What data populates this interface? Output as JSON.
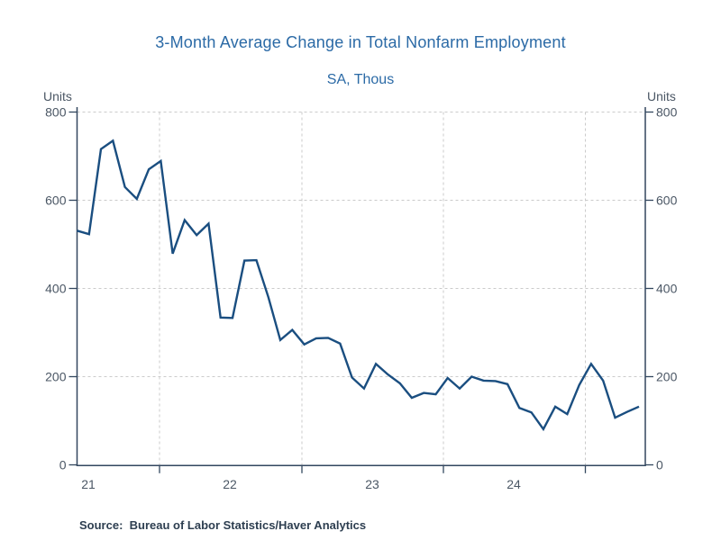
{
  "chart": {
    "title": "3-Month Average Change in Total Nonfarm Employment",
    "subtitle": "SA, Thous",
    "left_units": "Units",
    "right_units": "Units",
    "source_label": "Source:  Bureau of Labor Statistics/Haver Analytics"
  },
  "chart_data": {
    "type": "line",
    "title": "3-Month Average Change in Total Nonfarm Employment",
    "subtitle": "SA, Thous",
    "ylabel_left": "Units",
    "ylabel_right": "Units",
    "ylim": [
      0,
      800
    ],
    "y_ticks": [
      0,
      200,
      400,
      600,
      800
    ],
    "x_tick_year_labels": [
      "21",
      "22",
      "23",
      "24"
    ],
    "legend": "none",
    "grid": "dashed gray horizontal lines every 200 units and dashed vertical lines at mid-year",
    "source": "Source:  Bureau of Labor Statistics/Haver Analytics",
    "series": [
      {
        "name": "3-Month Average Change in Total Nonfarm Employment (SA, Thous)",
        "x": [
          "Dec 2020",
          "Jan 2021",
          "Feb 2021",
          "Mar 2021",
          "Apr 2021",
          "May 2021",
          "Jun 2021",
          "Jul 2021",
          "Aug 2021",
          "Sep 2021",
          "Oct 2021",
          "Nov 2021",
          "Dec 2021",
          "Jan 2022",
          "Feb 2022",
          "Mar 2022",
          "Apr 2022",
          "May 2022",
          "Jun 2022",
          "Jul 2022",
          "Aug 2022",
          "Sep 2022",
          "Oct 2022",
          "Nov 2022",
          "Dec 2022",
          "Jan 2023",
          "Feb 2023",
          "Mar 2023",
          "Apr 2023",
          "May 2023",
          "Jun 2023",
          "Jul 2023",
          "Aug 2023",
          "Sep 2023",
          "Oct 2023",
          "Nov 2023",
          "Dec 2023",
          "Jan 2024",
          "Feb 2024",
          "Mar 2024",
          "Apr 2024",
          "May 2024",
          "Jun 2024",
          "Jul 2024",
          "Aug 2024",
          "Sep 2024",
          "Oct 2024",
          "Nov 2024"
        ],
        "values": [
          531,
          523,
          716,
          735,
          630,
          603,
          670,
          689,
          479,
          555,
          521,
          547,
          334,
          333,
          463,
          464,
          380,
          283,
          306,
          273,
          287,
          288,
          275,
          198,
          173,
          229,
          205,
          185,
          152,
          163,
          160,
          197,
          173,
          200,
          191,
          190,
          183,
          129,
          119,
          81,
          132,
          115,
          181,
          229,
          191,
          107,
          120,
          132
        ]
      }
    ],
    "colors": {
      "line": "#1a4e80",
      "title": "#2b6aa6",
      "axis": "#33475f",
      "tick_label": "#4b5765",
      "gridline": "#cbcbcb",
      "source_text": "#2d3e50"
    }
  }
}
